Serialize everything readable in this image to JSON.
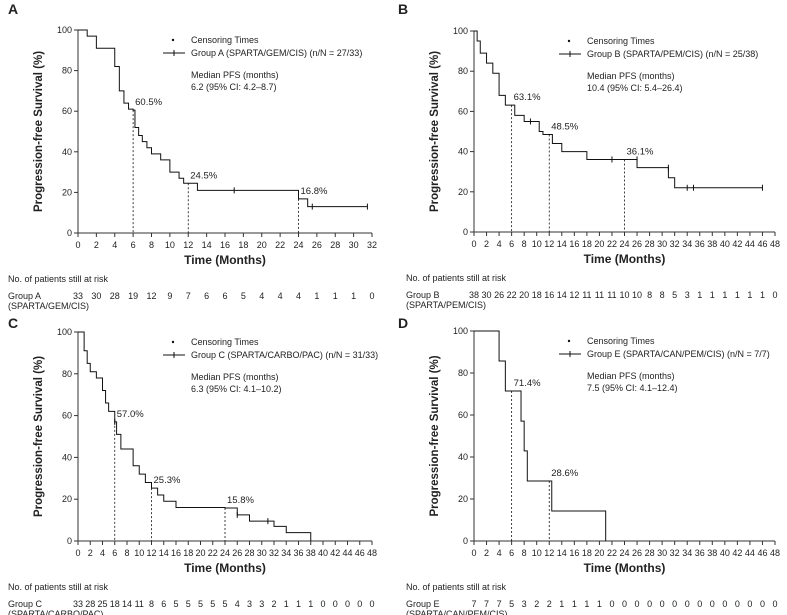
{
  "common": {
    "ylabel": "Progression-free Survival (%)",
    "xlabel": "Time (Months)",
    "risk_title": "No. of patients still at risk",
    "censor_label": "Censoring Times",
    "median_label": "Median PFS (months)"
  },
  "chart_data": [
    {
      "panel": "A",
      "type": "line",
      "xlim": [
        0,
        32
      ],
      "ylim": [
        0,
        100
      ],
      "xticks": [
        0,
        2,
        4,
        6,
        8,
        10,
        12,
        14,
        16,
        18,
        20,
        22,
        24,
        26,
        28,
        30,
        32
      ],
      "yticks": [
        0,
        20,
        40,
        60,
        80,
        100
      ],
      "legend": "Group A (SPARTA/GEM/CIS) (n/N = 27/33)",
      "median": "6.2 (95% CI: 4.2–8.7)",
      "steps": [
        [
          0,
          100
        ],
        [
          1,
          97
        ],
        [
          2,
          91
        ],
        [
          4,
          82
        ],
        [
          4.5,
          70
        ],
        [
          5,
          64
        ],
        [
          5.5,
          61
        ],
        [
          6,
          60.5
        ],
        [
          6.2,
          52
        ],
        [
          6.6,
          48
        ],
        [
          7,
          45
        ],
        [
          7.5,
          42
        ],
        [
          8,
          39
        ],
        [
          9,
          36
        ],
        [
          10,
          30
        ],
        [
          11,
          27
        ],
        [
          11.5,
          24.5
        ],
        [
          13,
          21
        ],
        [
          24,
          16.8
        ],
        [
          25,
          13
        ],
        [
          31.5,
          13
        ]
      ],
      "censors": [
        [
          17,
          21
        ],
        [
          25.5,
          13
        ],
        [
          31.5,
          13
        ]
      ],
      "markers": [
        {
          "x": 6,
          "y": 60.5,
          "label": "60.5%"
        },
        {
          "x": 12,
          "y": 24.5,
          "label": "24.5%"
        },
        {
          "x": 24,
          "y": 16.8,
          "label": "16.8%"
        }
      ],
      "risk_group": "Group A",
      "risk_regimen": "(SPARTA/GEM/CIS)",
      "risk_at": [
        0,
        2,
        4,
        6,
        8,
        10,
        12,
        14,
        16,
        18,
        20,
        22,
        24,
        26,
        28,
        30,
        32
      ],
      "risk": [
        "33",
        "30",
        "28",
        "19",
        "12",
        "9",
        "7",
        "6",
        "6",
        "5",
        "4",
        "4",
        "4",
        "1",
        "1",
        "1",
        "0"
      ]
    },
    {
      "panel": "B",
      "type": "line",
      "xlim": [
        0,
        48
      ],
      "ylim": [
        0,
        100
      ],
      "xticks": [
        0,
        2,
        4,
        6,
        8,
        10,
        12,
        14,
        16,
        18,
        20,
        22,
        24,
        26,
        28,
        30,
        32,
        34,
        36,
        38,
        40,
        42,
        44,
        46,
        48
      ],
      "yticks": [
        0,
        20,
        40,
        60,
        80,
        100
      ],
      "legend": "Group B (SPARTA/PEM/CIS) (n/N = 25/38)",
      "median": "10.4 (95% CI: 5.4–26.4)",
      "steps": [
        [
          0,
          100
        ],
        [
          0.5,
          95
        ],
        [
          1,
          89
        ],
        [
          2,
          84
        ],
        [
          3,
          79
        ],
        [
          4,
          68
        ],
        [
          5,
          63.1
        ],
        [
          6.5,
          58
        ],
        [
          8,
          55
        ],
        [
          10.4,
          50
        ],
        [
          11,
          48.5
        ],
        [
          12.5,
          44
        ],
        [
          14,
          40
        ],
        [
          18,
          36.1
        ],
        [
          26,
          32
        ],
        [
          31,
          27
        ],
        [
          32,
          22
        ],
        [
          46,
          22
        ]
      ],
      "censors": [
        [
          9,
          55
        ],
        [
          22,
          36.1
        ],
        [
          26,
          36.1
        ],
        [
          31,
          32
        ],
        [
          34,
          22
        ],
        [
          35,
          22
        ],
        [
          46,
          22
        ]
      ],
      "markers": [
        {
          "x": 6,
          "y": 63.1,
          "label": "63.1%"
        },
        {
          "x": 12,
          "y": 48.5,
          "label": "48.5%"
        },
        {
          "x": 24,
          "y": 36.1,
          "label": "36.1%"
        }
      ],
      "risk_group": "Group B",
      "risk_regimen": "(SPARTA/PEM/CIS)",
      "risk_at": [
        0,
        2,
        4,
        6,
        8,
        10,
        12,
        14,
        16,
        18,
        20,
        22,
        24,
        26,
        28,
        30,
        32,
        34,
        36,
        38,
        40,
        42,
        44,
        46,
        48
      ],
      "risk": [
        "38",
        "30",
        "26",
        "22",
        "20",
        "18",
        "16",
        "14",
        "12",
        "11",
        "11",
        "11",
        "10",
        "10",
        "8",
        "8",
        "5",
        "3",
        "1",
        "1",
        "1",
        "1",
        "1",
        "1",
        "0"
      ]
    },
    {
      "panel": "C",
      "type": "line",
      "xlim": [
        0,
        48
      ],
      "ylim": [
        0,
        100
      ],
      "xticks": [
        0,
        2,
        4,
        6,
        8,
        10,
        12,
        14,
        16,
        18,
        20,
        22,
        24,
        26,
        28,
        30,
        32,
        34,
        36,
        38,
        40,
        42,
        44,
        46,
        48
      ],
      "yticks": [
        0,
        20,
        40,
        60,
        80,
        100
      ],
      "legend": "Group C (SPARTA/CARBO/PAC) (n/N = 31/33)",
      "median": "6.3 (95% CI: 4.1–10.2)",
      "steps": [
        [
          0,
          100
        ],
        [
          1,
          91
        ],
        [
          1.5,
          85
        ],
        [
          2,
          81
        ],
        [
          3,
          78
        ],
        [
          4,
          72
        ],
        [
          4.5,
          66
        ],
        [
          5,
          62
        ],
        [
          6,
          57
        ],
        [
          6.3,
          51
        ],
        [
          7,
          44
        ],
        [
          9,
          36
        ],
        [
          10,
          32
        ],
        [
          11,
          28
        ],
        [
          12,
          25.3
        ],
        [
          13,
          22
        ],
        [
          14,
          19
        ],
        [
          16,
          16
        ],
        [
          24,
          15.8
        ],
        [
          26,
          12.5
        ],
        [
          28,
          9.5
        ],
        [
          32,
          7
        ],
        [
          34,
          4
        ],
        [
          38,
          0
        ]
      ],
      "censors": [
        [
          6,
          57
        ],
        [
          26,
          12.5
        ],
        [
          31,
          9.5
        ]
      ],
      "markers": [
        {
          "x": 6,
          "y": 57.0,
          "label": "57.0%"
        },
        {
          "x": 12,
          "y": 25.3,
          "label": "25.3%"
        },
        {
          "x": 24,
          "y": 15.8,
          "label": "15.8%"
        }
      ],
      "risk_group": "Group C",
      "risk_regimen": "(SPARTA/CARBO/PAC)",
      "risk_at": [
        0,
        2,
        4,
        6,
        8,
        10,
        12,
        14,
        16,
        18,
        20,
        22,
        24,
        26,
        28,
        30,
        32,
        34,
        36,
        38,
        40,
        42,
        44,
        46,
        48
      ],
      "risk": [
        "33",
        "28",
        "25",
        "18",
        "14",
        "11",
        "8",
        "6",
        "5",
        "5",
        "5",
        "5",
        "5",
        "4",
        "3",
        "3",
        "2",
        "1",
        "1",
        "1",
        "0",
        "0",
        "0",
        "0",
        "0"
      ]
    },
    {
      "panel": "D",
      "type": "line",
      "xlim": [
        0,
        48
      ],
      "ylim": [
        0,
        100
      ],
      "xticks": [
        0,
        2,
        4,
        6,
        8,
        10,
        12,
        14,
        16,
        18,
        20,
        22,
        24,
        26,
        28,
        30,
        32,
        34,
        36,
        38,
        40,
        42,
        44,
        46,
        48
      ],
      "yticks": [
        0,
        20,
        40,
        60,
        80,
        100
      ],
      "legend": "Group E (SPARTA/CAN/PEM/CIS) (n/N = 7/7)",
      "median": "7.5 (95% CI: 4.1–12.4)",
      "steps": [
        [
          0,
          100
        ],
        [
          4,
          85.7
        ],
        [
          5,
          71.4
        ],
        [
          7.5,
          57.1
        ],
        [
          8,
          42.9
        ],
        [
          8.5,
          28.6
        ],
        [
          12.4,
          14.3
        ],
        [
          21,
          0
        ]
      ],
      "censors": [],
      "markers": [
        {
          "x": 6,
          "y": 71.4,
          "label": "71.4%"
        },
        {
          "x": 12,
          "y": 28.6,
          "label": "28.6%"
        }
      ],
      "risk_group": "Group E",
      "risk_regimen": "(SPARTA/CAN/PEM/CIS)",
      "risk_at": [
        0,
        2,
        4,
        6,
        8,
        10,
        12,
        14,
        16,
        18,
        20,
        22,
        24,
        26,
        28,
        30,
        32,
        34,
        36,
        38,
        40,
        42,
        44,
        46,
        48
      ],
      "risk": [
        "7",
        "7",
        "7",
        "5",
        "3",
        "2",
        "2",
        "1",
        "1",
        "1",
        "1",
        "0",
        "0",
        "0",
        "0",
        "0",
        "0",
        "0",
        "0",
        "0",
        "0",
        "0",
        "0",
        "0",
        "0"
      ]
    }
  ]
}
